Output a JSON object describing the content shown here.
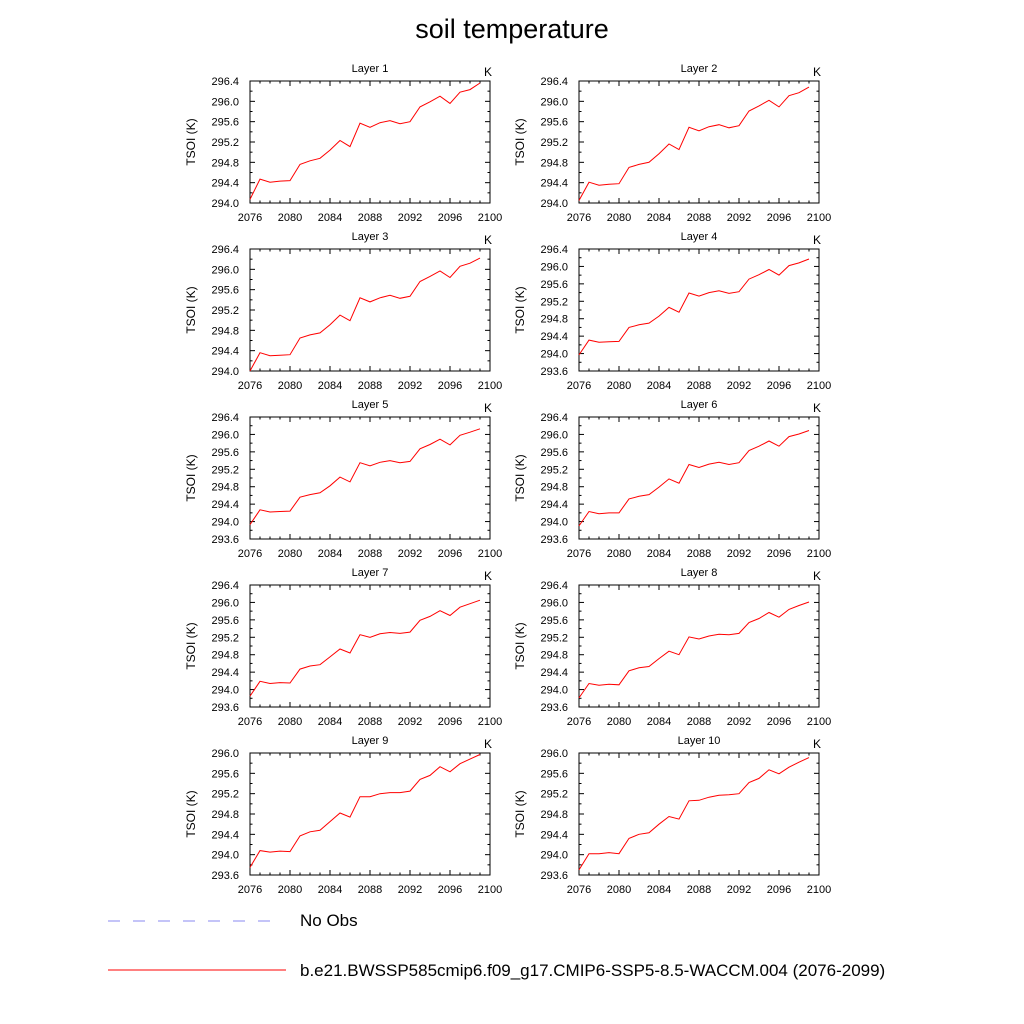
{
  "page": {
    "title": "soil temperature"
  },
  "legend": {
    "obs_label": "No Obs",
    "obs_color": "#8a8af0",
    "model_label": "b.e21.BWSSP585cmip6.f09_g17.CMIP6-SSP5-8.5-WACCM.004 (2076-2099)",
    "model_color": "#ff0000"
  },
  "chart_data": [
    {
      "type": "line",
      "title": "Layer 1",
      "unit_label": "K",
      "ylabel": "TSOI  (K)",
      "xlim": [
        2076,
        2100
      ],
      "x_ticks": [
        "2076",
        "2080",
        "2084",
        "2088",
        "2092",
        "2096",
        "2100"
      ],
      "ylim": [
        294.0,
        296.4
      ],
      "y_ticks": [
        "296.4",
        "296.0",
        "295.6",
        "295.2",
        "294.8",
        "294.4",
        "294.0"
      ],
      "series": [
        {
          "x": [
            2076,
            2077,
            2078,
            2079,
            2080,
            2081,
            2082,
            2083,
            2084,
            2085,
            2086,
            2087,
            2088,
            2089,
            2090,
            2091,
            2092,
            2093,
            2094,
            2095,
            2096,
            2097,
            2098,
            2099
          ],
          "values": [
            294.07,
            294.47,
            294.41,
            294.43,
            294.44,
            294.76,
            294.83,
            294.88,
            295.04,
            295.23,
            295.11,
            295.57,
            295.49,
            295.58,
            295.62,
            295.56,
            295.6,
            295.89,
            295.99,
            296.1,
            295.96,
            296.18,
            296.23,
            296.36
          ]
        }
      ]
    },
    {
      "type": "line",
      "title": "Layer 2",
      "unit_label": "K",
      "ylabel": "TSOI  (K)",
      "xlim": [
        2076,
        2100
      ],
      "x_ticks": [
        "2076",
        "2080",
        "2084",
        "2088",
        "2092",
        "2096",
        "2100"
      ],
      "ylim": [
        294.0,
        296.4
      ],
      "y_ticks": [
        "296.4",
        "296.0",
        "295.6",
        "295.2",
        "294.8",
        "294.4",
        "294.0"
      ],
      "series": [
        {
          "x": [
            2076,
            2077,
            2078,
            2079,
            2080,
            2081,
            2082,
            2083,
            2084,
            2085,
            2086,
            2087,
            2088,
            2089,
            2090,
            2091,
            2092,
            2093,
            2094,
            2095,
            2096,
            2097,
            2098,
            2099
          ],
          "values": [
            294.05,
            294.41,
            294.35,
            294.37,
            294.38,
            294.7,
            294.76,
            294.8,
            294.97,
            295.16,
            295.05,
            295.49,
            295.42,
            295.5,
            295.54,
            295.48,
            295.52,
            295.81,
            295.91,
            296.02,
            295.89,
            296.11,
            296.17,
            296.28
          ]
        }
      ]
    },
    {
      "type": "line",
      "title": "Layer 3",
      "unit_label": "K",
      "ylabel": "TSOI  (K)",
      "xlim": [
        2076,
        2100
      ],
      "x_ticks": [
        "2076",
        "2080",
        "2084",
        "2088",
        "2092",
        "2096",
        "2100"
      ],
      "ylim": [
        294.0,
        296.4
      ],
      "y_ticks": [
        "296.4",
        "296.0",
        "295.6",
        "295.2",
        "294.8",
        "294.4",
        "294.0"
      ],
      "series": [
        {
          "x": [
            2076,
            2077,
            2078,
            2079,
            2080,
            2081,
            2082,
            2083,
            2084,
            2085,
            2086,
            2087,
            2088,
            2089,
            2090,
            2091,
            2092,
            2093,
            2094,
            2095,
            2096,
            2097,
            2098,
            2099
          ],
          "values": [
            294.0,
            294.36,
            294.3,
            294.31,
            294.32,
            294.65,
            294.71,
            294.75,
            294.91,
            295.1,
            294.99,
            295.44,
            295.36,
            295.44,
            295.49,
            295.43,
            295.47,
            295.76,
            295.86,
            295.97,
            295.84,
            296.06,
            296.12,
            296.22
          ]
        }
      ]
    },
    {
      "type": "line",
      "title": "Layer 4",
      "unit_label": "K",
      "ylabel": "TSOI  (K)",
      "xlim": [
        2076,
        2100
      ],
      "x_ticks": [
        "2076",
        "2080",
        "2084",
        "2088",
        "2092",
        "2096",
        "2100"
      ],
      "ylim": [
        293.6,
        296.4
      ],
      "y_ticks": [
        "296.4",
        "296.0",
        "295.6",
        "295.2",
        "294.8",
        "294.4",
        "294.0",
        "293.6"
      ],
      "series": [
        {
          "x": [
            2076,
            2077,
            2078,
            2079,
            2080,
            2081,
            2082,
            2083,
            2084,
            2085,
            2086,
            2087,
            2088,
            2089,
            2090,
            2091,
            2092,
            2093,
            2094,
            2095,
            2096,
            2097,
            2098,
            2099
          ],
          "values": [
            293.97,
            294.31,
            294.26,
            294.27,
            294.28,
            294.6,
            294.66,
            294.7,
            294.86,
            295.06,
            294.95,
            295.39,
            295.32,
            295.4,
            295.44,
            295.38,
            295.42,
            295.71,
            295.81,
            295.93,
            295.8,
            296.02,
            296.08,
            296.17
          ]
        }
      ]
    },
    {
      "type": "line",
      "title": "Layer 5",
      "unit_label": "K",
      "ylabel": "TSOI  (K)",
      "xlim": [
        2076,
        2100
      ],
      "x_ticks": [
        "2076",
        "2080",
        "2084",
        "2088",
        "2092",
        "2096",
        "2100"
      ],
      "ylim": [
        293.6,
        296.4
      ],
      "y_ticks": [
        "296.4",
        "296.0",
        "295.6",
        "295.2",
        "294.8",
        "294.4",
        "294.0",
        "293.6"
      ],
      "series": [
        {
          "x": [
            2076,
            2077,
            2078,
            2079,
            2080,
            2081,
            2082,
            2083,
            2084,
            2085,
            2086,
            2087,
            2088,
            2089,
            2090,
            2091,
            2092,
            2093,
            2094,
            2095,
            2096,
            2097,
            2098,
            2099
          ],
          "values": [
            293.93,
            294.27,
            294.22,
            294.23,
            294.24,
            294.56,
            294.62,
            294.66,
            294.82,
            295.02,
            294.91,
            295.35,
            295.28,
            295.36,
            295.4,
            295.35,
            295.38,
            295.67,
            295.77,
            295.89,
            295.76,
            295.98,
            296.05,
            296.13
          ]
        }
      ]
    },
    {
      "type": "line",
      "title": "Layer 6",
      "unit_label": "K",
      "ylabel": "TSOI  (K)",
      "xlim": [
        2076,
        2100
      ],
      "x_ticks": [
        "2076",
        "2080",
        "2084",
        "2088",
        "2092",
        "2096",
        "2100"
      ],
      "ylim": [
        293.6,
        296.4
      ],
      "y_ticks": [
        "296.4",
        "296.0",
        "295.6",
        "295.2",
        "294.8",
        "294.4",
        "294.0",
        "293.6"
      ],
      "series": [
        {
          "x": [
            2076,
            2077,
            2078,
            2079,
            2080,
            2081,
            2082,
            2083,
            2084,
            2085,
            2086,
            2087,
            2088,
            2089,
            2090,
            2091,
            2092,
            2093,
            2094,
            2095,
            2096,
            2097,
            2098,
            2099
          ],
          "values": [
            293.9,
            294.23,
            294.18,
            294.2,
            294.2,
            294.52,
            294.58,
            294.62,
            294.79,
            294.98,
            294.88,
            295.31,
            295.24,
            295.32,
            295.36,
            295.31,
            295.35,
            295.63,
            295.73,
            295.85,
            295.73,
            295.95,
            296.01,
            296.09
          ]
        }
      ]
    },
    {
      "type": "line",
      "title": "Layer 7",
      "unit_label": "K",
      "ylabel": "TSOI  (K)",
      "xlim": [
        2076,
        2100
      ],
      "x_ticks": [
        "2076",
        "2080",
        "2084",
        "2088",
        "2092",
        "2096",
        "2100"
      ],
      "ylim": [
        293.6,
        296.4
      ],
      "y_ticks": [
        "296.4",
        "296.0",
        "295.6",
        "295.2",
        "294.8",
        "294.4",
        "294.0",
        "293.6"
      ],
      "series": [
        {
          "x": [
            2076,
            2077,
            2078,
            2079,
            2080,
            2081,
            2082,
            2083,
            2084,
            2085,
            2086,
            2087,
            2088,
            2089,
            2090,
            2091,
            2092,
            2093,
            2094,
            2095,
            2096,
            2097,
            2098,
            2099
          ],
          "values": [
            293.85,
            294.19,
            294.14,
            294.16,
            294.15,
            294.47,
            294.54,
            294.57,
            294.75,
            294.93,
            294.84,
            295.26,
            295.2,
            295.28,
            295.31,
            295.29,
            295.32,
            295.59,
            295.68,
            295.81,
            295.7,
            295.89,
            295.97,
            296.05
          ]
        }
      ]
    },
    {
      "type": "line",
      "title": "Layer 8",
      "unit_label": "K",
      "ylabel": "TSOI  (K)",
      "xlim": [
        2076,
        2100
      ],
      "x_ticks": [
        "2076",
        "2080",
        "2084",
        "2088",
        "2092",
        "2096",
        "2100"
      ],
      "ylim": [
        293.6,
        296.4
      ],
      "y_ticks": [
        "296.4",
        "296.0",
        "295.6",
        "295.2",
        "294.8",
        "294.4",
        "294.0",
        "293.6"
      ],
      "series": [
        {
          "x": [
            2076,
            2077,
            2078,
            2079,
            2080,
            2081,
            2082,
            2083,
            2084,
            2085,
            2086,
            2087,
            2088,
            2089,
            2090,
            2091,
            2092,
            2093,
            2094,
            2095,
            2096,
            2097,
            2098,
            2099
          ],
          "values": [
            293.81,
            294.14,
            294.1,
            294.12,
            294.11,
            294.43,
            294.5,
            294.53,
            294.71,
            294.88,
            294.8,
            295.21,
            295.16,
            295.23,
            295.27,
            295.26,
            295.29,
            295.54,
            295.63,
            295.77,
            295.66,
            295.84,
            295.93,
            296.01
          ]
        }
      ]
    },
    {
      "type": "line",
      "title": "Layer 9",
      "unit_label": "K",
      "ylabel": "TSOI  (K)",
      "xlim": [
        2076,
        2100
      ],
      "x_ticks": [
        "2076",
        "2080",
        "2084",
        "2088",
        "2092",
        "2096",
        "2100"
      ],
      "ylim": [
        293.6,
        296.0
      ],
      "y_ticks": [
        "296.0",
        "295.6",
        "295.2",
        "294.8",
        "294.4",
        "294.0",
        "293.6"
      ],
      "series": [
        {
          "x": [
            2076,
            2077,
            2078,
            2079,
            2080,
            2081,
            2082,
            2083,
            2084,
            2085,
            2086,
            2087,
            2088,
            2089,
            2090,
            2091,
            2092,
            2093,
            2094,
            2095,
            2096,
            2097,
            2098,
            2099
          ],
          "values": [
            293.75,
            294.08,
            294.05,
            294.07,
            294.06,
            294.37,
            294.45,
            294.48,
            294.65,
            294.82,
            294.74,
            295.14,
            295.14,
            295.2,
            295.22,
            295.22,
            295.25,
            295.48,
            295.56,
            295.73,
            295.63,
            295.79,
            295.88,
            295.97
          ]
        }
      ]
    },
    {
      "type": "line",
      "title": "Layer 10",
      "unit_label": "K",
      "ylabel": "TSOI  (K)",
      "xlim": [
        2076,
        2100
      ],
      "x_ticks": [
        "2076",
        "2080",
        "2084",
        "2088",
        "2092",
        "2096",
        "2100"
      ],
      "ylim": [
        293.6,
        296.0
      ],
      "y_ticks": [
        "296.0",
        "295.6",
        "295.2",
        "294.8",
        "294.4",
        "294.0",
        "293.6"
      ],
      "series": [
        {
          "x": [
            2076,
            2077,
            2078,
            2079,
            2080,
            2081,
            2082,
            2083,
            2084,
            2085,
            2086,
            2087,
            2088,
            2089,
            2090,
            2091,
            2092,
            2093,
            2094,
            2095,
            2096,
            2097,
            2098,
            2099
          ],
          "values": [
            293.7,
            294.02,
            294.02,
            294.04,
            294.02,
            294.32,
            294.4,
            294.43,
            294.6,
            294.75,
            294.7,
            295.06,
            295.07,
            295.13,
            295.17,
            295.18,
            295.2,
            295.42,
            295.5,
            295.67,
            295.59,
            295.72,
            295.82,
            295.91
          ]
        }
      ]
    }
  ]
}
